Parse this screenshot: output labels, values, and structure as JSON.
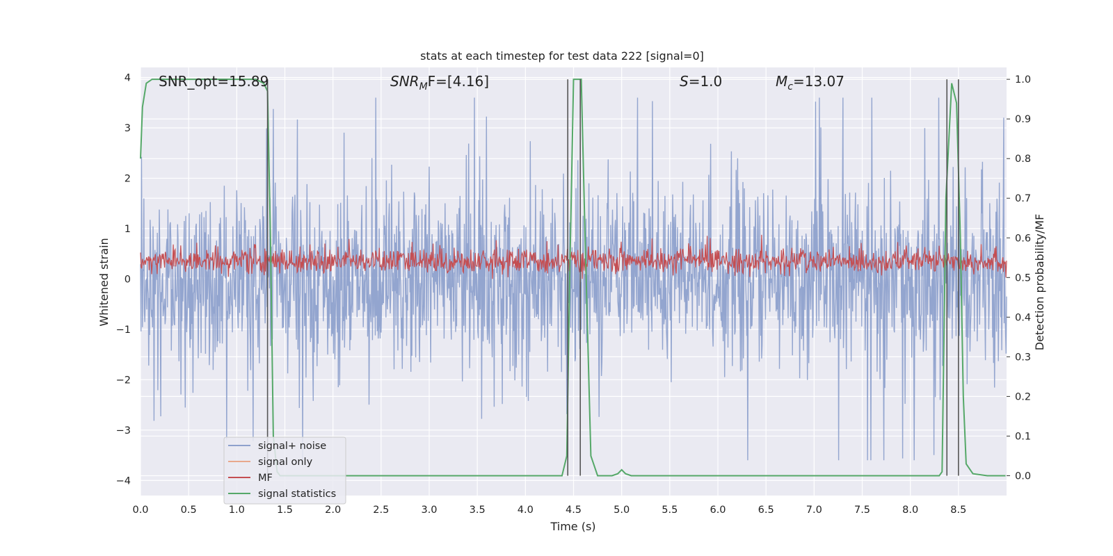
{
  "chart_data": {
    "type": "line",
    "title": "stats at each timestep for test data 222 [signal=0]",
    "xlabel": "Time (s)",
    "ylabel_left": "Whitened strain",
    "ylabel_right": "Detection probability/MF",
    "xlim": [
      0.0,
      9.0
    ],
    "ylim_left": [
      -4.3,
      4.2
    ],
    "ylim_right": [
      -0.05,
      1.03
    ],
    "x_ticks": [
      "0.0",
      "0.5",
      "1.0",
      "1.5",
      "2.0",
      "2.5",
      "3.0",
      "3.5",
      "4.0",
      "4.5",
      "5.0",
      "5.5",
      "6.0",
      "6.5",
      "7.0",
      "7.5",
      "8.0",
      "8.5"
    ],
    "y_ticks_left": [
      "4",
      "3",
      "2",
      "1",
      "0",
      "−1",
      "−2",
      "−3",
      "−4"
    ],
    "y_ticks_right": [
      "1.0",
      "0.9",
      "0.8",
      "0.7",
      "0.6",
      "0.5",
      "0.4",
      "0.3",
      "0.2",
      "0.1",
      "0.0"
    ],
    "grid": true,
    "legend_position": "lower-left",
    "annotations": {
      "snr_opt": "SNR_opt=15.89",
      "snr_mf_base": "SNR",
      "snr_mf_sub": "M",
      "snr_mf_rest": "F=[4.16]",
      "s_sym": "S",
      "s_val": "=1.0",
      "mc_sym": "M",
      "mc_sub": "c",
      "mc_val": "=13.07"
    },
    "series": [
      {
        "name": "signal+ noise",
        "color": "#8ea1cc",
        "axis": "left",
        "description_values": "noise band approx ±1.5 with spikes up to ±3.5",
        "band_typical": [
          -1.5,
          1.5
        ],
        "band_peak": [
          -3.6,
          3.6
        ]
      },
      {
        "name": "signal only",
        "color": "#e8a88c",
        "axis": "left",
        "x": [],
        "y": []
      },
      {
        "name": "MF",
        "color": "#c44e52",
        "axis": "left",
        "band_typical": [
          0.1,
          0.65
        ],
        "band_peak": [
          0.0,
          1.0
        ]
      },
      {
        "name": "signal statistics",
        "color": "#55a868",
        "axis": "right",
        "x": [
          0.0,
          0.02,
          0.06,
          0.12,
          0.2,
          0.4,
          0.8,
          1.2,
          1.28,
          1.32,
          1.35,
          1.38,
          1.42,
          1.45,
          1.5,
          2.0,
          3.0,
          4.0,
          4.38,
          4.43,
          4.46,
          4.5,
          4.55,
          4.58,
          4.62,
          4.68,
          4.75,
          4.9,
          4.96,
          5.0,
          5.04,
          5.1,
          5.5,
          6.5,
          7.5,
          8.3,
          8.33,
          8.37,
          8.43,
          8.48,
          8.52,
          8.55,
          8.58,
          8.65,
          8.8,
          8.99
        ],
        "y": [
          0.8,
          0.93,
          0.99,
          1.0,
          1.0,
          1.0,
          1.0,
          1.0,
          0.99,
          0.97,
          0.6,
          0.1,
          0.01,
          0.0,
          0.0,
          0.0,
          0.0,
          0.0,
          0.0,
          0.05,
          0.5,
          1.0,
          1.0,
          1.0,
          0.6,
          0.05,
          0.0,
          0.0,
          0.005,
          0.015,
          0.005,
          0.0,
          0.0,
          0.0,
          0.0,
          0.0,
          0.01,
          0.7,
          0.99,
          0.94,
          0.6,
          0.2,
          0.03,
          0.005,
          0.0,
          0.0
        ]
      }
    ],
    "vertical_markers_x": [
      1.32,
      4.44,
      4.57,
      8.38,
      8.5
    ]
  }
}
